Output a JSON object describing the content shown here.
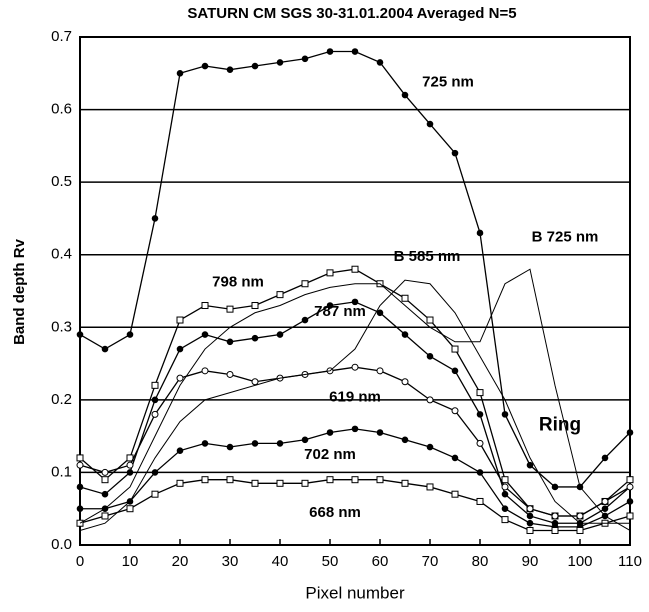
{
  "chart_data": {
    "type": "line",
    "title": "SATURN CM SGS 30-31.01.2004 Averaged N=5",
    "xlabel": "Pixel number",
    "ylabel": "Band depth Rv",
    "annotations": [
      "Ring"
    ],
    "x": [
      0,
      5,
      10,
      15,
      20,
      25,
      30,
      35,
      40,
      45,
      50,
      55,
      60,
      65,
      70,
      75,
      80,
      85,
      90,
      95,
      100,
      105,
      110
    ],
    "series": [
      {
        "name": "725 nm",
        "color": "#000000",
        "marker": "filled-circle",
        "values": [
          0.29,
          0.27,
          0.29,
          0.45,
          0.65,
          0.66,
          0.655,
          0.66,
          0.665,
          0.67,
          0.68,
          0.68,
          0.665,
          0.62,
          0.58,
          0.54,
          0.43,
          0.18,
          0.11,
          0.08,
          0.08,
          0.12,
          0.155
        ]
      },
      {
        "name": "798 nm",
        "color": "#000000",
        "marker": "open-square",
        "values": [
          0.12,
          0.09,
          0.12,
          0.22,
          0.31,
          0.33,
          0.325,
          0.33,
          0.345,
          0.36,
          0.375,
          0.38,
          0.36,
          0.34,
          0.31,
          0.27,
          0.21,
          0.09,
          0.05,
          0.04,
          0.04,
          0.06,
          0.09
        ]
      },
      {
        "name": "787 nm",
        "color": "#000000",
        "marker": "filled-circle",
        "values": [
          0.08,
          0.07,
          0.1,
          0.2,
          0.27,
          0.29,
          0.28,
          0.285,
          0.29,
          0.31,
          0.33,
          0.335,
          0.32,
          0.29,
          0.26,
          0.24,
          0.18,
          0.07,
          0.04,
          0.03,
          0.03,
          0.05,
          0.08
        ]
      },
      {
        "name": "619 nm",
        "color": "#000000",
        "marker": "open-circle",
        "values": [
          0.11,
          0.1,
          0.11,
          0.18,
          0.23,
          0.24,
          0.235,
          0.225,
          0.23,
          0.235,
          0.24,
          0.245,
          0.24,
          0.225,
          0.2,
          0.185,
          0.14,
          0.08,
          0.05,
          0.04,
          0.04,
          0.06,
          0.08
        ]
      },
      {
        "name": "702 nm",
        "color": "#000000",
        "marker": "filled-circle",
        "values": [
          0.05,
          0.05,
          0.06,
          0.1,
          0.13,
          0.14,
          0.135,
          0.14,
          0.14,
          0.145,
          0.155,
          0.16,
          0.155,
          0.145,
          0.135,
          0.12,
          0.1,
          0.05,
          0.03,
          0.025,
          0.025,
          0.04,
          0.06
        ]
      },
      {
        "name": "668 nm",
        "color": "#000000",
        "marker": "open-square",
        "values": [
          0.03,
          0.04,
          0.05,
          0.07,
          0.085,
          0.09,
          0.09,
          0.085,
          0.085,
          0.085,
          0.09,
          0.09,
          0.09,
          0.085,
          0.08,
          0.07,
          0.06,
          0.035,
          0.02,
          0.02,
          0.02,
          0.03,
          0.04
        ]
      },
      {
        "name": "B 585 nm",
        "color": "#000000",
        "marker": "none",
        "values": [
          0.02,
          0.03,
          0.06,
          0.12,
          0.17,
          0.2,
          0.21,
          0.22,
          0.23,
          0.235,
          0.24,
          0.27,
          0.33,
          0.365,
          0.36,
          0.32,
          0.26,
          0.2,
          0.12,
          0.06,
          0.03,
          0.03,
          0.03
        ]
      },
      {
        "name": "B 725 nm",
        "color": "#000000",
        "marker": "none",
        "values": [
          0.03,
          0.05,
          0.08,
          0.15,
          0.22,
          0.27,
          0.3,
          0.32,
          0.33,
          0.345,
          0.355,
          0.36,
          0.36,
          0.33,
          0.3,
          0.28,
          0.28,
          0.36,
          0.38,
          0.22,
          0.08,
          0.04,
          0.02
        ]
      }
    ],
    "xlim": [
      0,
      110
    ],
    "xticks": [
      0,
      10,
      20,
      30,
      40,
      50,
      60,
      70,
      80,
      90,
      100,
      110
    ],
    "ylim": [
      0,
      0.7
    ],
    "yticks": [
      {
        "value": 0,
        "label": "0.0"
      },
      0.1,
      0.2,
      0.3,
      0.4,
      0.5,
      0.6,
      0.7
    ],
    "grid": true
  }
}
